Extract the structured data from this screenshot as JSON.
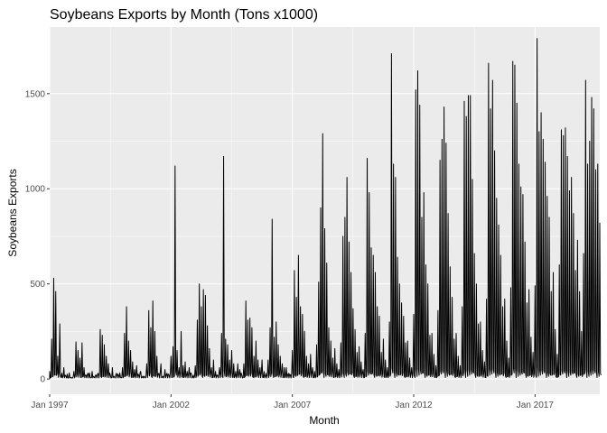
{
  "chart_data": {
    "type": "line",
    "title": "Soybeans Exports by Month (Tons x1000)",
    "xlabel": "Month",
    "ylabel": "Soybeans Exports",
    "xlim": [
      "1997-01",
      "2019-09"
    ],
    "ylim": [
      -80,
      1850
    ],
    "x_ticks": [
      "Jan 1997",
      "Jan 2002",
      "Jan 2007",
      "Jan 2012",
      "Jan 2017"
    ],
    "y_ticks": [
      "0",
      "500",
      "1000",
      "1500"
    ],
    "x_tick_dates": [
      "1997-01",
      "2002-01",
      "2007-01",
      "2012-01",
      "2017-01"
    ],
    "y_tick_values": [
      0,
      500,
      1000,
      1500
    ],
    "grid": true,
    "background": "#EBEBEB",
    "line_color": "#000000",
    "series": [
      {
        "x_start": "1997-01",
        "x_end": "2019-09",
        "values": [
          40,
          210,
          530,
          460,
          120,
          290,
          30,
          60,
          15,
          5,
          8,
          5,
          40,
          195,
          150,
          110,
          190,
          60,
          20,
          30,
          10,
          40,
          10,
          20,
          30,
          260,
          230,
          180,
          120,
          80,
          20,
          60,
          10,
          30,
          20,
          10,
          60,
          240,
          380,
          200,
          150,
          90,
          50,
          70,
          20,
          40,
          15,
          10,
          80,
          360,
          270,
          410,
          250,
          120,
          30,
          80,
          15,
          50,
          30,
          20,
          120,
          170,
          1120,
          150,
          60,
          250,
          70,
          90,
          40,
          60,
          30,
          20,
          70,
          310,
          500,
          380,
          470,
          440,
          280,
          160,
          60,
          100,
          40,
          20,
          60,
          240,
          1170,
          210,
          180,
          100,
          150,
          80,
          40,
          80,
          50,
          20,
          80,
          410,
          310,
          320,
          270,
          120,
          200,
          100,
          60,
          100,
          40,
          30,
          100,
          270,
          840,
          220,
          300,
          180,
          120,
          80,
          60,
          60,
          30,
          20,
          150,
          570,
          430,
          650,
          380,
          340,
          250,
          120,
          80,
          130,
          60,
          40,
          180,
          510,
          900,
          1290,
          790,
          610,
          270,
          200,
          110,
          160,
          80,
          50,
          190,
          750,
          850,
          1060,
          720,
          560,
          370,
          260,
          140,
          170,
          90,
          50,
          240,
          1160,
          980,
          690,
          650,
          560,
          380,
          330,
          140,
          210,
          100,
          60,
          300,
          1710,
          1130,
          1060,
          640,
          500,
          400,
          330,
          190,
          200,
          110,
          60,
          340,
          1520,
          1620,
          1440,
          850,
          980,
          600,
          500,
          230,
          240,
          130,
          70,
          360,
          1150,
          1260,
          1430,
          1240,
          870,
          590,
          430,
          210,
          240,
          120,
          70,
          380,
          1460,
          1380,
          1490,
          1490,
          1050,
          660,
          500,
          290,
          300,
          150,
          90,
          420,
          1660,
          1420,
          1570,
          1200,
          950,
          810,
          650,
          380,
          420,
          200,
          110,
          480,
          1670,
          1650,
          1450,
          1130,
          1010,
          970,
          720,
          400,
          470,
          220,
          140,
          490,
          1790,
          1300,
          1400,
          1260,
          1140,
          960,
          850,
          460,
          560,
          260,
          130,
          600,
          1310,
          1280,
          1320,
          1170,
          990,
          1060,
          870,
          570,
          730,
          460,
          250,
          660,
          1570,
          1130,
          1250,
          1480,
          1420,
          1100,
          1130,
          820
        ]
      }
    ]
  }
}
